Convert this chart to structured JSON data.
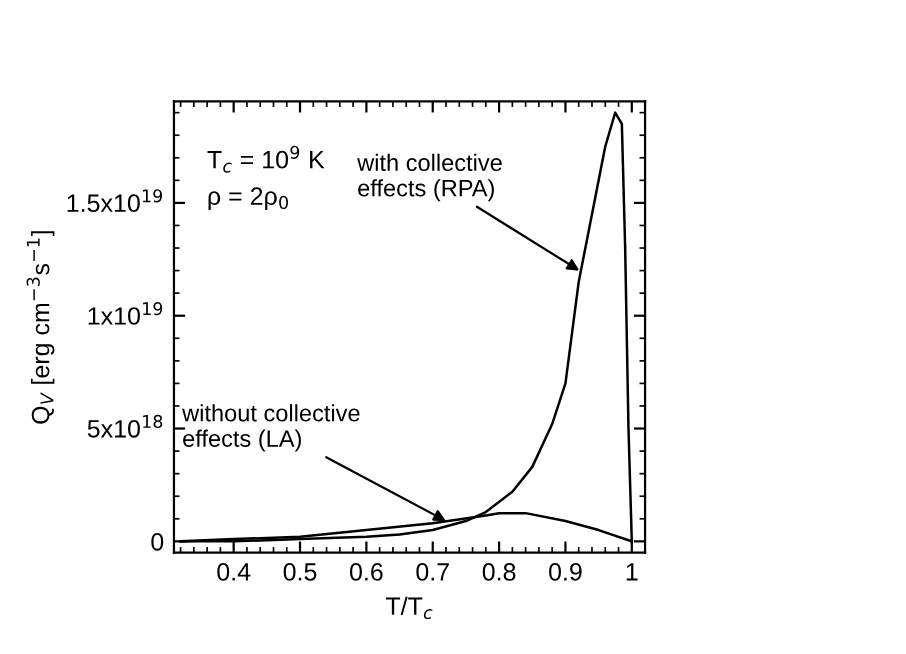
{
  "chart_data": {
    "type": "line",
    "xlabel": "T/T$_{c}$",
    "ylabel": "Q$_{V}$ [erg cm$^{−3}$s$^{−1}$]",
    "xlim": [
      0.31,
      1.02
    ],
    "ylim": [
      -5e+17,
      1.95e+19
    ],
    "xticks": [
      0.4,
      0.5,
      0.6,
      0.7,
      0.8,
      0.9,
      1
    ],
    "yticks": [
      0,
      {
        "value": 5e+18,
        "label": "5x10$^{18}$"
      },
      {
        "value": 1e+19,
        "label": "1x10$^{19}$"
      },
      {
        "value": 1.5e+19,
        "label": "1.5x10$^{19}$"
      }
    ],
    "grid": false,
    "legend": false,
    "line_style": "solid",
    "marker": "none",
    "series": [
      {
        "color": "#000000",
        "x": [
          0.32,
          0.4,
          0.5,
          0.6,
          0.65,
          0.7,
          0.75,
          0.78,
          0.82,
          0.85,
          0.88,
          0.9,
          0.92,
          0.94,
          0.96,
          0.975,
          0.985,
          0.99,
          0.995,
          1.0
        ],
        "values": [
          0,
          0,
          1e+17,
          2e+17,
          3e+17,
          5e+17,
          9e+17,
          1.3e+18,
          2.2e+18,
          3.3e+18,
          5.2e+18,
          7e+18,
          1.15e+19,
          1.45e+19,
          1.75e+19,
          1.9e+19,
          1.85e+19,
          1.3e+19,
          5e+18,
          0
        ]
      },
      {
        "color": "#000000",
        "x": [
          0.32,
          0.4,
          0.5,
          0.6,
          0.7,
          0.78,
          0.8,
          0.84,
          0.9,
          0.95,
          1.0
        ],
        "values": [
          0,
          1e+17,
          2e+17,
          5e+17,
          8e+17,
          1.15e+18,
          1.25e+18,
          1.25e+18,
          9e+17,
          5e+17,
          0
        ]
      }
    ],
    "annotations": [
      "T$_{c}$ = 10$^{9}$ K",
      "ρ = 2ρ$_{0}$",
      {
        "text": "with collective\neffects (RPA)",
        "x": 0.921,
        "y": 1.2e+19
      },
      {
        "text": "without collective\neffects (LA)",
        "x": 0.72,
        "y": 9e+17
      }
    ]
  }
}
